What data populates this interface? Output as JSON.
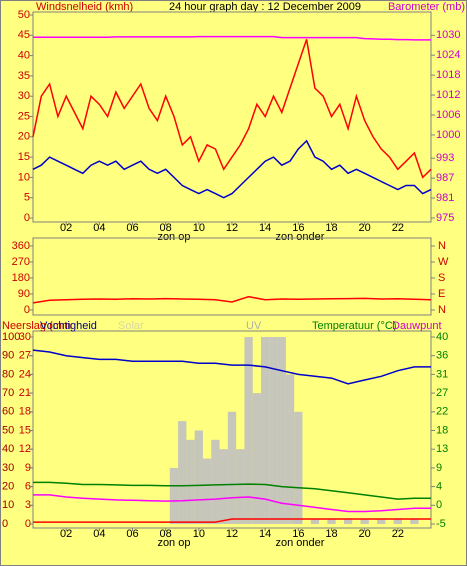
{
  "chart_data": [
    {
      "type": "line",
      "title": "24 hour graph day : 12 December 2009",
      "ylabel": "Windsnelheid (kmh)",
      "y2label": "Barometer (mb)",
      "xlim": [
        0,
        24
      ],
      "xticks": [
        {
          "value": 2,
          "label": "02"
        },
        {
          "value": 4,
          "label": "04"
        },
        {
          "value": 6,
          "label": "06"
        },
        {
          "value": 8,
          "label": "08"
        },
        {
          "value": 10,
          "label": "10"
        },
        {
          "value": 12,
          "label": "12"
        },
        {
          "value": 14,
          "label": "14"
        },
        {
          "value": 16,
          "label": "16"
        },
        {
          "value": 18,
          "label": "18"
        },
        {
          "value": 20,
          "label": "20"
        },
        {
          "value": 22,
          "label": "22"
        }
      ],
      "ylim": [
        0,
        50
      ],
      "yticks": [
        0,
        5,
        10,
        15,
        20,
        25,
        30,
        35,
        40,
        45,
        50
      ],
      "y2lim": [
        975,
        1036.1
      ],
      "y2ticks": [
        975,
        981,
        987,
        993,
        1000,
        1006,
        1012,
        1018,
        1024,
        1030
      ],
      "annotations": [
        {
          "text": "zon op",
          "x": 8.5
        },
        {
          "text": "zon onder",
          "x": 16.1
        }
      ],
      "x": [
        0,
        0.5,
        1,
        1.5,
        2,
        2.5,
        3,
        3.5,
        4,
        4.5,
        5,
        5.5,
        6,
        6.5,
        7,
        7.5,
        8,
        8.5,
        9,
        9.5,
        10,
        10.5,
        11,
        11.5,
        12,
        12.5,
        13,
        13.5,
        14,
        14.5,
        15,
        15.5,
        16,
        16.5,
        17,
        17.5,
        18,
        18.5,
        19,
        19.5,
        20,
        20.5,
        21,
        21.5,
        22,
        22.5,
        23,
        23.5,
        24
      ],
      "series": [
        {
          "color": "#ff0000",
          "values": [
            20,
            30,
            33,
            25,
            30,
            26,
            22,
            30,
            28,
            25,
            31,
            27,
            30,
            33,
            27,
            24,
            30,
            25,
            18,
            20,
            14,
            18,
            17,
            12,
            15,
            18,
            22,
            28,
            25,
            30,
            26,
            32,
            38,
            44,
            32,
            30,
            25,
            28,
            22,
            30,
            24,
            20,
            17,
            15,
            12,
            14,
            16,
            10,
            12
          ]
        },
        {
          "color": "#0000cc",
          "values": [
            12,
            13,
            15,
            14,
            13,
            12,
            11,
            13,
            14,
            13,
            14,
            12,
            13,
            14,
            12,
            11,
            12,
            10,
            8,
            7,
            6,
            7,
            6,
            5,
            6,
            8,
            10,
            12,
            14,
            15,
            13,
            14,
            17,
            19,
            15,
            14,
            12,
            13,
            11,
            12,
            11,
            10,
            9,
            8,
            7,
            8,
            8,
            6,
            7
          ]
        },
        {
          "color": "#ff00ff",
          "axis": "y2",
          "values": [
            1029.4,
            1029.4,
            1029.4,
            1029.4,
            1029.4,
            1029.4,
            1029.4,
            1029.4,
            1029.4,
            1029.4,
            1029.5,
            1029.5,
            1029.5,
            1029.5,
            1029.5,
            1029.5,
            1029.5,
            1029.5,
            1029.5,
            1029.5,
            1029.6,
            1029.6,
            1029.6,
            1029.6,
            1029.6,
            1029.6,
            1029.6,
            1029.6,
            1029.6,
            1029.6,
            1029.3,
            1029.3,
            1029.3,
            1029.3,
            1029.3,
            1029.3,
            1029.3,
            1029.3,
            1029.3,
            1029.3,
            1029.0,
            1028.9,
            1028.8,
            1028.8,
            1028.7,
            1028.7,
            1028.6,
            1028.6,
            1028.6
          ]
        }
      ]
    },
    {
      "type": "line",
      "xlim": [
        0,
        24
      ],
      "ylim": [
        0,
        360
      ],
      "yticks": [
        0,
        90,
        180,
        270,
        360
      ],
      "y2lim": [
        0,
        360
      ],
      "y2ticks": [
        {
          "value": 0,
          "label": "N"
        },
        {
          "value": 90,
          "label": "E"
        },
        {
          "value": 180,
          "label": "S"
        },
        {
          "value": 270,
          "label": "W"
        },
        {
          "value": 360,
          "label": "N"
        }
      ],
      "x": [
        0,
        1,
        2,
        3,
        4,
        5,
        6,
        7,
        8,
        9,
        10,
        11,
        12,
        13,
        14,
        15,
        16,
        17,
        18,
        19,
        20,
        21,
        22,
        23,
        24
      ],
      "series": [
        {
          "color": "#ff0000",
          "values": [
            40,
            55,
            58,
            60,
            62,
            60,
            63,
            62,
            64,
            62,
            60,
            58,
            45,
            75,
            58,
            62,
            60,
            62,
            63,
            64,
            65,
            62,
            63,
            60,
            58
          ]
        }
      ]
    },
    {
      "type": "line",
      "xlim": [
        0,
        24
      ],
      "xticks": [
        {
          "value": 2,
          "label": "02"
        },
        {
          "value": 4,
          "label": "04"
        },
        {
          "value": 6,
          "label": "06"
        },
        {
          "value": 8,
          "label": "08"
        },
        {
          "value": 10,
          "label": "10"
        },
        {
          "value": 12,
          "label": "12"
        },
        {
          "value": 14,
          "label": "14"
        },
        {
          "value": 16,
          "label": "16"
        },
        {
          "value": 18,
          "label": "18"
        },
        {
          "value": 20,
          "label": "20"
        },
        {
          "value": 22,
          "label": "22"
        }
      ],
      "ylim": [
        0,
        100
      ],
      "yticks": [
        0,
        10,
        20,
        30,
        40,
        50,
        60,
        70,
        80,
        90,
        100
      ],
      "y3lim": [
        0,
        30
      ],
      "y3ticks": [
        0,
        3,
        6,
        9,
        12,
        15,
        18,
        21,
        24,
        27,
        30
      ],
      "y2lim": [
        -5,
        40
      ],
      "y2ticks": [
        -5,
        {
          "value": -0.5,
          "label": "0"
        },
        4,
        {
          "value": 8.5,
          "label": "9"
        },
        13,
        {
          "value": 17.5,
          "label": "18"
        },
        22,
        {
          "value": 26.5,
          "label": "27"
        },
        31,
        {
          "value": 35.5,
          "label": "36"
        },
        40
      ],
      "annotations": [
        {
          "text": "zon op",
          "x": 8.5
        },
        {
          "text": "zon onder",
          "x": 16.1
        }
      ],
      "x": [
        0,
        1,
        2,
        3,
        4,
        5,
        6,
        7,
        8,
        9,
        10,
        11,
        12,
        13,
        14,
        15,
        16,
        17,
        18,
        19,
        20,
        21,
        22,
        23,
        24
      ],
      "series": [
        {
          "name": "Neerslag (mm",
          "color": "#ff0000",
          "axis": "y3",
          "values": [
            0.3,
            0.3,
            0.3,
            0.3,
            0.3,
            0.3,
            0.3,
            0.3,
            0.3,
            0.3,
            0.3,
            0.3,
            0.8,
            0.8,
            0.8,
            0.8,
            0.8,
            0.8,
            0.8,
            0.8,
            0.8,
            0.8,
            0.8,
            0.8,
            0.8
          ]
        },
        {
          "name": "Vochtigheid",
          "color": "#0000cc",
          "values": [
            93,
            92,
            90,
            89,
            88,
            88,
            87,
            87,
            87,
            87,
            86,
            86,
            85,
            85,
            84,
            82,
            80,
            79,
            78,
            75,
            77,
            79,
            82,
            84,
            84
          ]
        },
        {
          "name": "Solar",
          "color": "#c0c0c0",
          "style": "bar",
          "x": [
            8.5,
            9,
            9.5,
            10,
            10.5,
            11,
            11.5,
            12,
            12.5,
            13,
            13.5,
            14,
            14.5,
            15,
            15.5,
            16
          ],
          "values": [
            30,
            55,
            45,
            50,
            35,
            45,
            40,
            60,
            40,
            100,
            70,
            100,
            100,
            100,
            80,
            60
          ]
        },
        {
          "name": "UV",
          "color": "#c0c0c0",
          "style": "bar",
          "x": [
            16,
            17,
            18,
            19,
            20,
            21,
            22,
            23
          ],
          "values": [
            3,
            3,
            3,
            3,
            3,
            3,
            3,
            3
          ]
        },
        {
          "name": "Temperatuur (°C)",
          "color": "#008000",
          "axis": "y2",
          "values": [
            5,
            5,
            4.8,
            4.5,
            4.5,
            4.4,
            4.3,
            4.3,
            4.2,
            4.2,
            4.3,
            4.4,
            4.5,
            4.6,
            4.5,
            4.0,
            3.7,
            3.5,
            3.0,
            2.5,
            2.0,
            1.5,
            1.0,
            1.2,
            1.2
          ]
        },
        {
          "name": "Dauwpunt",
          "color": "#ff00ff",
          "axis": "y2",
          "values": [
            2,
            2,
            1.5,
            1.2,
            1.0,
            0.8,
            0.7,
            0.6,
            0.5,
            0.6,
            0.8,
            1.0,
            1.3,
            1.5,
            1.0,
            0,
            -0.5,
            -1,
            -1.5,
            -2,
            -2,
            -1.8,
            -1.5,
            -1.2,
            -1.2
          ]
        }
      ]
    }
  ]
}
